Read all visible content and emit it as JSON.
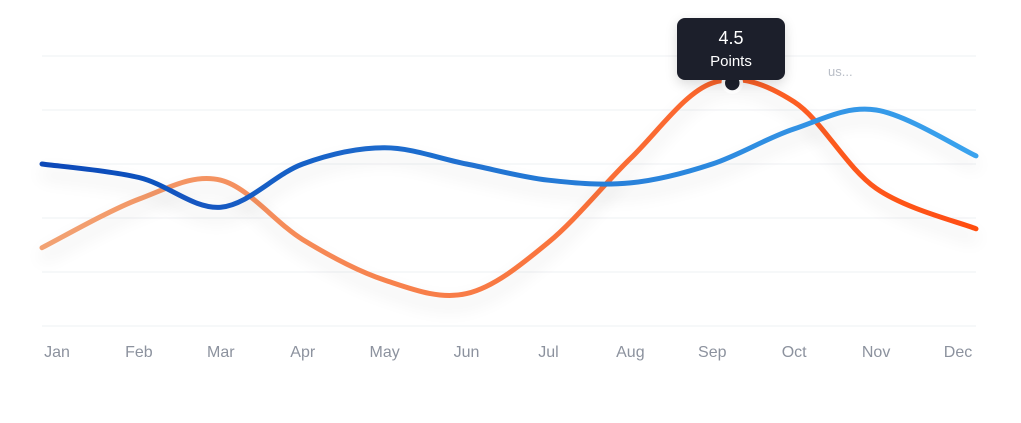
{
  "chart_data": {
    "type": "line",
    "categories": [
      "Jan",
      "Feb",
      "Mar",
      "Apr",
      "May",
      "Jun",
      "Jul",
      "Aug",
      "Sep",
      "Oct",
      "Nov",
      "Dec"
    ],
    "series": [
      {
        "color_start": "#f2a273",
        "color_end": "#ff4d10",
        "values": [
          1.45,
          2.35,
          2.7,
          1.6,
          0.85,
          0.6,
          1.55,
          3.1,
          4.5,
          4.15,
          2.55,
          1.8
        ]
      },
      {
        "color_start": "#0b48b8",
        "color_end": "#3aa3ee",
        "values": [
          3.0,
          2.75,
          2.2,
          3.0,
          3.3,
          3.0,
          2.7,
          2.65,
          3.0,
          3.65,
          4.0,
          3.15
        ]
      }
    ],
    "ylim": [
      0,
      5
    ],
    "grid": true,
    "tooltip": {
      "value": "4.5",
      "label": "Points",
      "category": "Sep"
    },
    "faded_label": "us..."
  }
}
